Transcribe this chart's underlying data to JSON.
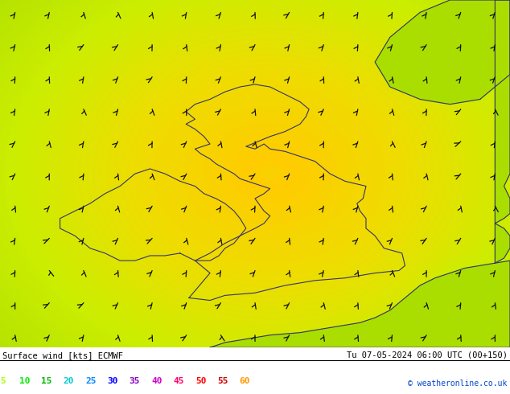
{
  "title_left": "Surface wind [kts] ECMWF",
  "title_right": "Tu 07-05-2024 06:00 UTC (00+150)",
  "credit": "© weatheronline.co.uk",
  "legend_values": [
    5,
    10,
    15,
    20,
    25,
    30,
    35,
    40,
    45,
    50,
    55,
    60
  ],
  "legend_colors": [
    "#aaff00",
    "#00ee00",
    "#00bb00",
    "#00cccc",
    "#0088ff",
    "#0000ff",
    "#8800cc",
    "#cc00cc",
    "#ff0066",
    "#ff0000",
    "#cc0000",
    "#ff9900"
  ],
  "bg_color": "#ffffff",
  "col_green_light": "#aae000",
  "col_yellow": "#eecc00",
  "col_green_bright": "#22dd00",
  "col_green_dark": "#33aa00",
  "map_extent": [
    -12.0,
    5.0,
    48.0,
    62.0
  ],
  "wind_arrow_color": "#111111",
  "coastline_color": "#333366",
  "separator_color": "#000000"
}
